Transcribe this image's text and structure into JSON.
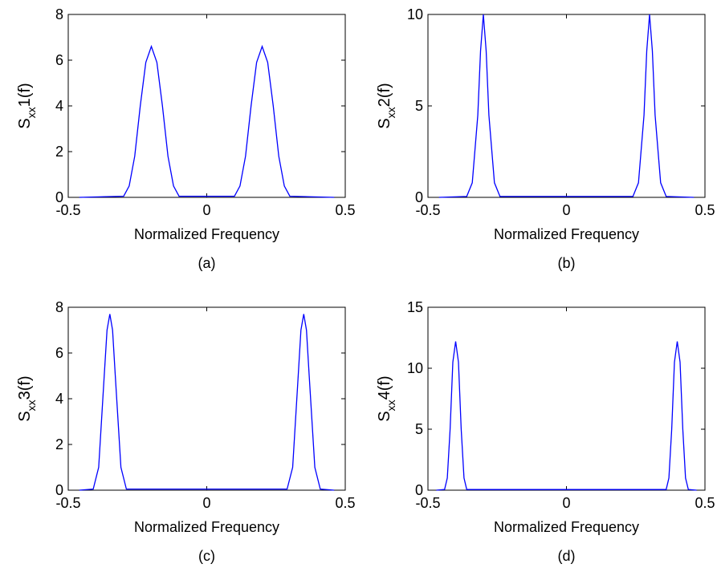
{
  "chart_data": [
    {
      "type": "line",
      "panel_label": "(a)",
      "xlabel": "Normalized Frequency",
      "ylabel_parts": [
        "S",
        "xx",
        "1(f)"
      ],
      "xlim": [
        -0.5,
        0.5
      ],
      "ylim": [
        0,
        8
      ],
      "xticks": [
        -0.5,
        0,
        0.5
      ],
      "xtick_labels": [
        "-0.5",
        "0",
        "0.5"
      ],
      "yticks": [
        0,
        2,
        4,
        6,
        8
      ],
      "ytick_labels": [
        "0",
        "2",
        "4",
        "6",
        "8"
      ],
      "grid": false,
      "series": [
        {
          "color": "#0000ff",
          "x": [
            -0.46,
            -0.3,
            -0.28,
            -0.26,
            -0.24,
            -0.22,
            -0.2,
            -0.18,
            -0.16,
            -0.14,
            -0.12,
            -0.1,
            0.1,
            0.12,
            0.14,
            0.16,
            0.18,
            0.2,
            0.22,
            0.24,
            0.26,
            0.28,
            0.3,
            0.46
          ],
          "y": [
            0,
            0.05,
            0.5,
            1.8,
            4.0,
            5.9,
            6.6,
            5.9,
            4.0,
            1.8,
            0.5,
            0.05,
            0.05,
            0.5,
            1.8,
            4.0,
            5.9,
            6.6,
            5.9,
            4.0,
            1.8,
            0.5,
            0.05,
            0
          ]
        }
      ]
    },
    {
      "type": "line",
      "panel_label": "(b)",
      "xlabel": "Normalized Frequency",
      "ylabel_parts": [
        "S",
        "xx",
        "2(f)"
      ],
      "xlim": [
        -0.5,
        0.5
      ],
      "ylim": [
        0,
        10
      ],
      "xticks": [
        -0.5,
        0,
        0.5
      ],
      "xtick_labels": [
        "-0.5",
        "0",
        "0.5"
      ],
      "yticks": [
        0,
        5,
        10
      ],
      "ytick_labels": [
        "0",
        "5",
        "10"
      ],
      "grid": false,
      "series": [
        {
          "color": "#0000ff",
          "x": [
            -0.46,
            -0.36,
            -0.34,
            -0.32,
            -0.31,
            -0.3,
            -0.29,
            -0.28,
            -0.26,
            -0.24,
            0.24,
            0.26,
            0.28,
            0.29,
            0.3,
            0.31,
            0.32,
            0.34,
            0.36,
            0.46
          ],
          "y": [
            0,
            0.05,
            0.8,
            4.5,
            8.0,
            10.0,
            8.0,
            4.5,
            0.8,
            0.05,
            0.05,
            0.8,
            4.5,
            8.0,
            10.0,
            8.0,
            4.5,
            0.8,
            0.05,
            0
          ]
        }
      ]
    },
    {
      "type": "line",
      "panel_label": "(c)",
      "xlabel": "Normalized Frequency",
      "ylabel_parts": [
        "S",
        "xx",
        "3(f)"
      ],
      "xlim": [
        -0.5,
        0.5
      ],
      "ylim": [
        0,
        8
      ],
      "xticks": [
        -0.5,
        0,
        0.5
      ],
      "xtick_labels": [
        "-0.5",
        "0",
        "0.5"
      ],
      "yticks": [
        0,
        2,
        4,
        6,
        8
      ],
      "ytick_labels": [
        "0",
        "2",
        "4",
        "6",
        "8"
      ],
      "grid": false,
      "series": [
        {
          "color": "#0000ff",
          "x": [
            -0.46,
            -0.41,
            -0.39,
            -0.37,
            -0.36,
            -0.35,
            -0.34,
            -0.33,
            -0.31,
            -0.29,
            0.29,
            0.31,
            0.33,
            0.34,
            0.35,
            0.36,
            0.37,
            0.39,
            0.41,
            0.46
          ],
          "y": [
            0,
            0.05,
            1.0,
            5.0,
            7.0,
            7.7,
            7.0,
            5.0,
            1.0,
            0.05,
            0.05,
            1.0,
            5.0,
            7.0,
            7.7,
            7.0,
            5.0,
            1.0,
            0.05,
            0
          ]
        }
      ]
    },
    {
      "type": "line",
      "panel_label": "(d)",
      "xlabel": "Normalized Frequency",
      "ylabel_parts": [
        "S",
        "xx",
        "4(f)"
      ],
      "xlim": [
        -0.5,
        0.5
      ],
      "ylim": [
        0,
        15
      ],
      "xticks": [
        -0.5,
        0,
        0.5
      ],
      "xtick_labels": [
        "-0.5",
        "0",
        "0.5"
      ],
      "yticks": [
        0,
        5,
        10,
        15
      ],
      "ytick_labels": [
        "0",
        "5",
        "10",
        "15"
      ],
      "grid": false,
      "series": [
        {
          "color": "#0000ff",
          "x": [
            -0.47,
            -0.44,
            -0.43,
            -0.42,
            -0.41,
            -0.4,
            -0.39,
            -0.38,
            -0.37,
            -0.36,
            0.36,
            0.37,
            0.38,
            0.39,
            0.4,
            0.41,
            0.42,
            0.43,
            0.44,
            0.47
          ],
          "y": [
            0,
            0.05,
            1.0,
            5.0,
            10.5,
            12.2,
            10.5,
            5.0,
            1.0,
            0.05,
            0.05,
            1.0,
            5.0,
            10.5,
            12.2,
            10.5,
            5.0,
            1.0,
            0.05,
            0
          ]
        }
      ]
    }
  ]
}
